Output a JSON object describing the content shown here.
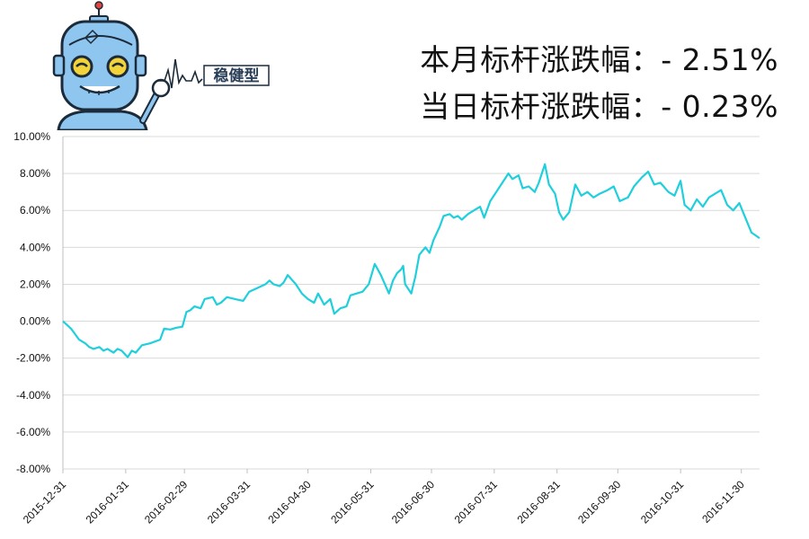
{
  "header": {
    "monthly_label": "本月标杆涨跌幅：- 2.51%",
    "daily_label": "当日标杆涨跌幅：- 0.23%",
    "badge_text": "稳健型"
  },
  "colors": {
    "line": "#1fd0dc",
    "grid": "#d9d9d9",
    "axis": "#bfbfbf",
    "mascot_body": "#8fc6f0",
    "mascot_outline": "#1c2b3a",
    "mascot_eye": "#f3d23a"
  },
  "chart_data": {
    "type": "line",
    "title": "",
    "xlabel": "",
    "ylabel": "",
    "ylim": [
      -8,
      10
    ],
    "y_ticks": [
      "10.00%",
      "8.00%",
      "6.00%",
      "4.00%",
      "2.00%",
      "0.00%",
      "-2.00%",
      "-4.00%",
      "-6.00%",
      "-8.00%"
    ],
    "x_ticks": [
      "2015-12-31",
      "2016-01-31",
      "2016-02-29",
      "2016-03-31",
      "2016-04-30",
      "2016-05-31",
      "2016-06-30",
      "2016-07-31",
      "2016-08-31",
      "2016-09-30",
      "2016-10-31",
      "2016-11-30"
    ],
    "grid": true,
    "series": [
      {
        "points": [
          [
            "2015-12-31",
            0.0
          ],
          [
            "2016-01-04",
            -0.4
          ],
          [
            "2016-01-06",
            -0.7
          ],
          [
            "2016-01-08",
            -1.0
          ],
          [
            "2016-01-11",
            -1.2
          ],
          [
            "2016-01-13",
            -1.4
          ],
          [
            "2016-01-15",
            -1.5
          ],
          [
            "2016-01-18",
            -1.4
          ],
          [
            "2016-01-20",
            -1.6
          ],
          [
            "2016-01-22",
            -1.5
          ],
          [
            "2016-01-25",
            -1.7
          ],
          [
            "2016-01-27",
            -1.5
          ],
          [
            "2016-01-29",
            -1.6
          ],
          [
            "2016-02-01",
            -1.95
          ],
          [
            "2016-02-03",
            -1.6
          ],
          [
            "2016-02-05",
            -1.7
          ],
          [
            "2016-02-08",
            -1.3
          ],
          [
            "2016-02-12",
            -1.2
          ],
          [
            "2016-02-17",
            -1.0
          ],
          [
            "2016-02-19",
            -0.4
          ],
          [
            "2016-02-22",
            -0.45
          ],
          [
            "2016-02-25",
            -0.35
          ],
          [
            "2016-02-28",
            -0.3
          ],
          [
            "2016-03-01",
            0.5
          ],
          [
            "2016-03-03",
            0.6
          ],
          [
            "2016-03-05",
            0.8
          ],
          [
            "2016-03-08",
            0.7
          ],
          [
            "2016-03-10",
            1.2
          ],
          [
            "2016-03-14",
            1.3
          ],
          [
            "2016-03-16",
            0.9
          ],
          [
            "2016-03-18",
            1.0
          ],
          [
            "2016-03-21",
            1.3
          ],
          [
            "2016-03-25",
            1.2
          ],
          [
            "2016-03-29",
            1.1
          ],
          [
            "2016-04-01",
            1.6
          ],
          [
            "2016-04-05",
            1.8
          ],
          [
            "2016-04-07",
            1.9
          ],
          [
            "2016-04-09",
            2.0
          ],
          [
            "2016-04-11",
            2.2
          ],
          [
            "2016-04-13",
            2.0
          ],
          [
            "2016-04-16",
            1.9
          ],
          [
            "2016-04-18",
            2.1
          ],
          [
            "2016-04-20",
            2.5
          ],
          [
            "2016-04-24",
            2.0
          ],
          [
            "2016-04-27",
            1.5
          ],
          [
            "2016-04-30",
            1.2
          ],
          [
            "2016-05-03",
            1.0
          ],
          [
            "2016-05-05",
            1.5
          ],
          [
            "2016-05-08",
            0.9
          ],
          [
            "2016-05-11",
            1.2
          ],
          [
            "2016-05-13",
            0.4
          ],
          [
            "2016-05-16",
            0.7
          ],
          [
            "2016-05-19",
            0.8
          ],
          [
            "2016-05-21",
            1.4
          ],
          [
            "2016-05-24",
            1.5
          ],
          [
            "2016-05-27",
            1.6
          ],
          [
            "2016-05-30",
            2.0
          ],
          [
            "2016-06-02",
            3.1
          ],
          [
            "2016-06-05",
            2.5
          ],
          [
            "2016-06-07",
            2.0
          ],
          [
            "2016-06-09",
            1.5
          ],
          [
            "2016-06-11",
            2.2
          ],
          [
            "2016-06-13",
            2.6
          ],
          [
            "2016-06-15",
            2.8
          ],
          [
            "2016-06-16",
            3.0
          ],
          [
            "2016-06-17",
            2.0
          ],
          [
            "2016-06-20",
            1.5
          ],
          [
            "2016-06-22",
            2.4
          ],
          [
            "2016-06-24",
            3.6
          ],
          [
            "2016-06-27",
            4.0
          ],
          [
            "2016-06-29",
            3.7
          ],
          [
            "2016-07-01",
            4.4
          ],
          [
            "2016-07-04",
            5.1
          ],
          [
            "2016-07-06",
            5.7
          ],
          [
            "2016-07-09",
            5.8
          ],
          [
            "2016-07-11",
            5.6
          ],
          [
            "2016-07-13",
            5.7
          ],
          [
            "2016-07-15",
            5.5
          ],
          [
            "2016-07-18",
            5.8
          ],
          [
            "2016-07-21",
            6.0
          ],
          [
            "2016-07-24",
            6.2
          ],
          [
            "2016-07-26",
            5.6
          ],
          [
            "2016-07-29",
            6.5
          ],
          [
            "2016-08-01",
            7.0
          ],
          [
            "2016-08-04",
            7.5
          ],
          [
            "2016-08-07",
            8.0
          ],
          [
            "2016-08-09",
            7.7
          ],
          [
            "2016-08-12",
            7.9
          ],
          [
            "2016-08-14",
            7.2
          ],
          [
            "2016-08-17",
            7.3
          ],
          [
            "2016-08-20",
            7.0
          ],
          [
            "2016-08-22",
            7.5
          ],
          [
            "2016-08-25",
            8.5
          ],
          [
            "2016-08-27",
            7.4
          ],
          [
            "2016-08-30",
            6.9
          ],
          [
            "2016-09-01",
            5.9
          ],
          [
            "2016-09-03",
            5.5
          ],
          [
            "2016-09-06",
            5.9
          ],
          [
            "2016-09-09",
            7.4
          ],
          [
            "2016-09-12",
            6.8
          ],
          [
            "2016-09-15",
            7.0
          ],
          [
            "2016-09-18",
            6.7
          ],
          [
            "2016-09-21",
            6.9
          ],
          [
            "2016-09-25",
            7.1
          ],
          [
            "2016-09-28",
            7.3
          ],
          [
            "2016-10-01",
            6.5
          ],
          [
            "2016-10-05",
            6.7
          ],
          [
            "2016-10-08",
            7.3
          ],
          [
            "2016-10-12",
            7.8
          ],
          [
            "2016-10-15",
            8.1
          ],
          [
            "2016-10-18",
            7.4
          ],
          [
            "2016-10-21",
            7.5
          ],
          [
            "2016-10-25",
            7.0
          ],
          [
            "2016-10-28",
            6.8
          ],
          [
            "2016-10-31",
            7.6
          ],
          [
            "2016-11-02",
            6.3
          ],
          [
            "2016-11-05",
            6.0
          ],
          [
            "2016-11-08",
            6.6
          ],
          [
            "2016-11-11",
            6.2
          ],
          [
            "2016-11-14",
            6.7
          ],
          [
            "2016-11-17",
            6.9
          ],
          [
            "2016-11-20",
            7.1
          ],
          [
            "2016-11-23",
            6.3
          ],
          [
            "2016-11-26",
            6.0
          ],
          [
            "2016-11-29",
            6.4
          ],
          [
            "2016-12-02",
            5.6
          ],
          [
            "2016-12-05",
            4.8
          ],
          [
            "2016-12-09",
            4.5
          ]
        ]
      }
    ]
  }
}
